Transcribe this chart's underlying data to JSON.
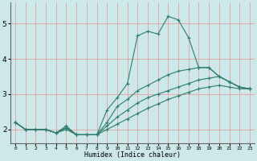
{
  "xlabel": "Humidex (Indice chaleur)",
  "bg_color": "#cce8e8",
  "grid_color": "#e8a0a0",
  "line_color": "#2e7d6e",
  "xlim": [
    -0.5,
    23.5
  ],
  "ylim": [
    1.6,
    5.6
  ],
  "xticks": [
    0,
    1,
    2,
    3,
    4,
    5,
    6,
    7,
    8,
    9,
    10,
    11,
    12,
    13,
    14,
    15,
    16,
    17,
    18,
    19,
    20,
    21,
    22,
    23
  ],
  "yticks": [
    2,
    3,
    4,
    5
  ],
  "lines": [
    {
      "x": [
        0,
        1,
        2,
        3,
        4,
        5,
        6,
        7,
        8,
        9,
        10,
        11,
        12,
        13,
        14,
        15,
        16,
        17,
        18,
        19,
        20,
        21,
        22,
        23
      ],
      "y": [
        2.2,
        2.0,
        2.0,
        2.0,
        1.9,
        2.1,
        1.85,
        1.85,
        1.85,
        2.55,
        2.9,
        3.3,
        4.65,
        4.78,
        4.7,
        5.2,
        5.1,
        4.6,
        3.75,
        3.75,
        3.5,
        3.35,
        3.2,
        3.15
      ]
    },
    {
      "x": [
        0,
        1,
        2,
        3,
        4,
        5,
        6,
        7,
        8,
        9,
        10,
        11,
        12,
        13,
        14,
        15,
        16,
        17,
        18,
        19,
        20,
        21,
        22,
        23
      ],
      "y": [
        2.2,
        2.0,
        2.0,
        2.0,
        1.9,
        2.05,
        1.85,
        1.85,
        1.85,
        2.2,
        2.65,
        2.85,
        3.1,
        3.25,
        3.4,
        3.55,
        3.65,
        3.7,
        3.75,
        3.75,
        3.5,
        3.35,
        3.2,
        3.15
      ]
    },
    {
      "x": [
        0,
        1,
        2,
        3,
        4,
        5,
        6,
        7,
        8,
        9,
        10,
        11,
        12,
        13,
        14,
        15,
        16,
        17,
        18,
        19,
        20,
        21,
        22,
        23
      ],
      "y": [
        2.2,
        2.0,
        2.0,
        2.0,
        1.9,
        2.05,
        1.85,
        1.85,
        1.85,
        2.1,
        2.35,
        2.55,
        2.75,
        2.9,
        3.0,
        3.1,
        3.2,
        3.3,
        3.4,
        3.45,
        3.5,
        3.35,
        3.2,
        3.15
      ]
    },
    {
      "x": [
        0,
        1,
        2,
        3,
        4,
        5,
        6,
        7,
        8,
        9,
        10,
        11,
        12,
        13,
        14,
        15,
        16,
        17,
        18,
        19,
        20,
        21,
        22,
        23
      ],
      "y": [
        2.2,
        2.0,
        2.0,
        2.0,
        1.9,
        2.0,
        1.85,
        1.85,
        1.85,
        2.0,
        2.15,
        2.3,
        2.45,
        2.6,
        2.72,
        2.85,
        2.95,
        3.05,
        3.15,
        3.2,
        3.25,
        3.2,
        3.15,
        3.15
      ]
    }
  ]
}
